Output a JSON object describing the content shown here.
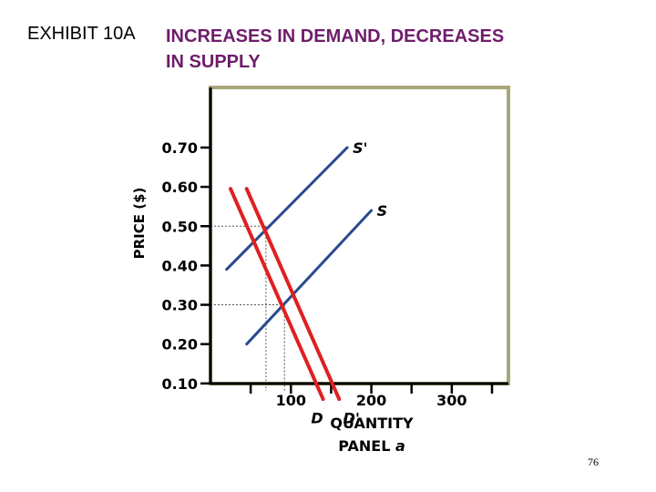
{
  "slide": {
    "label": "EXHIBIT 10A",
    "title_line1": "INCREASES IN DEMAND, DECREASES",
    "title_line2": "IN SUPPLY",
    "page_number": "76"
  },
  "colors": {
    "heading": "#6e1d6a",
    "supply": "#2a4a8f",
    "demand": "#e02020",
    "frame": "#a8a77a",
    "axis": "#000000"
  },
  "chart_data": {
    "type": "line",
    "title": "",
    "xlabel": "QUANTITY",
    "ylabel": "PRICE ($)",
    "panel_label": "PANEL",
    "panel_letter": "a",
    "xlim": [
      0,
      370
    ],
    "ylim": [
      0.0,
      0.78
    ],
    "x_ticks": [
      {
        "value": 50,
        "label": ""
      },
      {
        "value": 100,
        "label": "100"
      },
      {
        "value": 150,
        "label": ""
      },
      {
        "value": 200,
        "label": "200"
      },
      {
        "value": 250,
        "label": ""
      },
      {
        "value": 300,
        "label": "300"
      },
      {
        "value": 350,
        "label": ""
      }
    ],
    "y_ticks": [
      {
        "value": 0.1,
        "label": "0.10"
      },
      {
        "value": 0.2,
        "label": "0.20"
      },
      {
        "value": 0.3,
        "label": "0.30"
      },
      {
        "value": 0.4,
        "label": "0.40"
      },
      {
        "value": 0.5,
        "label": "0.50"
      },
      {
        "value": 0.6,
        "label": "0.60"
      },
      {
        "value": 0.7,
        "label": "0.70"
      }
    ],
    "series": [
      {
        "name": "S'",
        "kind": "supply",
        "points": [
          [
            20,
            0.39
          ],
          [
            170,
            0.7
          ]
        ],
        "label_at": [
          170,
          0.7
        ]
      },
      {
        "name": "S",
        "kind": "supply",
        "points": [
          [
            45,
            0.2
          ],
          [
            200,
            0.54
          ]
        ],
        "label_at": [
          200,
          0.54
        ]
      },
      {
        "name": "D",
        "kind": "demand",
        "points": [
          [
            25,
            0.595
          ],
          [
            140,
            0.06
          ]
        ],
        "label_at": [
          125,
          0.04
        ]
      },
      {
        "name": "D'",
        "kind": "demand",
        "points": [
          [
            45,
            0.595
          ],
          [
            160,
            0.06
          ]
        ],
        "label_at": [
          165,
          0.04
        ]
      }
    ],
    "guides": [
      {
        "x": 69,
        "y": 0.5
      },
      {
        "x": 92,
        "y": 0.3
      }
    ],
    "grid": false,
    "legend": "none"
  }
}
